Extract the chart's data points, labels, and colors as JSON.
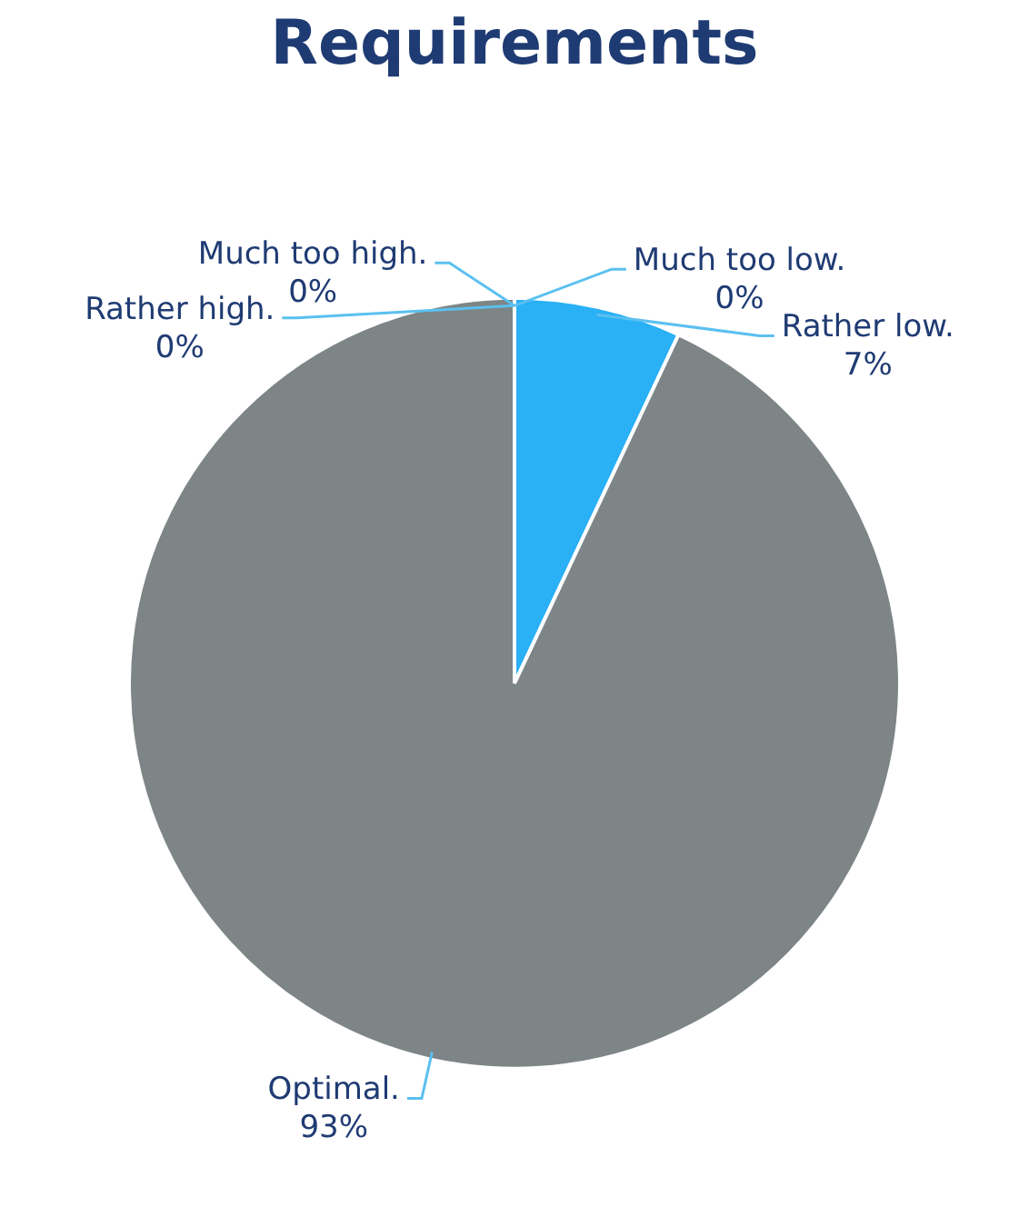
{
  "chart_data": {
    "type": "pie",
    "title": "Requirements",
    "categories": [
      "Much too low.",
      "Rather low.",
      "Optimal.",
      "Rather high.",
      "Much too high."
    ],
    "values": [
      0,
      7,
      93,
      0,
      0
    ],
    "value_labels": [
      "0%",
      "7%",
      "93%",
      "0%",
      "0%"
    ],
    "colors": [
      "#1f7fd0",
      "#29b0f5",
      "#7d8586",
      "#5bc0f0",
      "#9fd8f5"
    ],
    "legend": false
  }
}
